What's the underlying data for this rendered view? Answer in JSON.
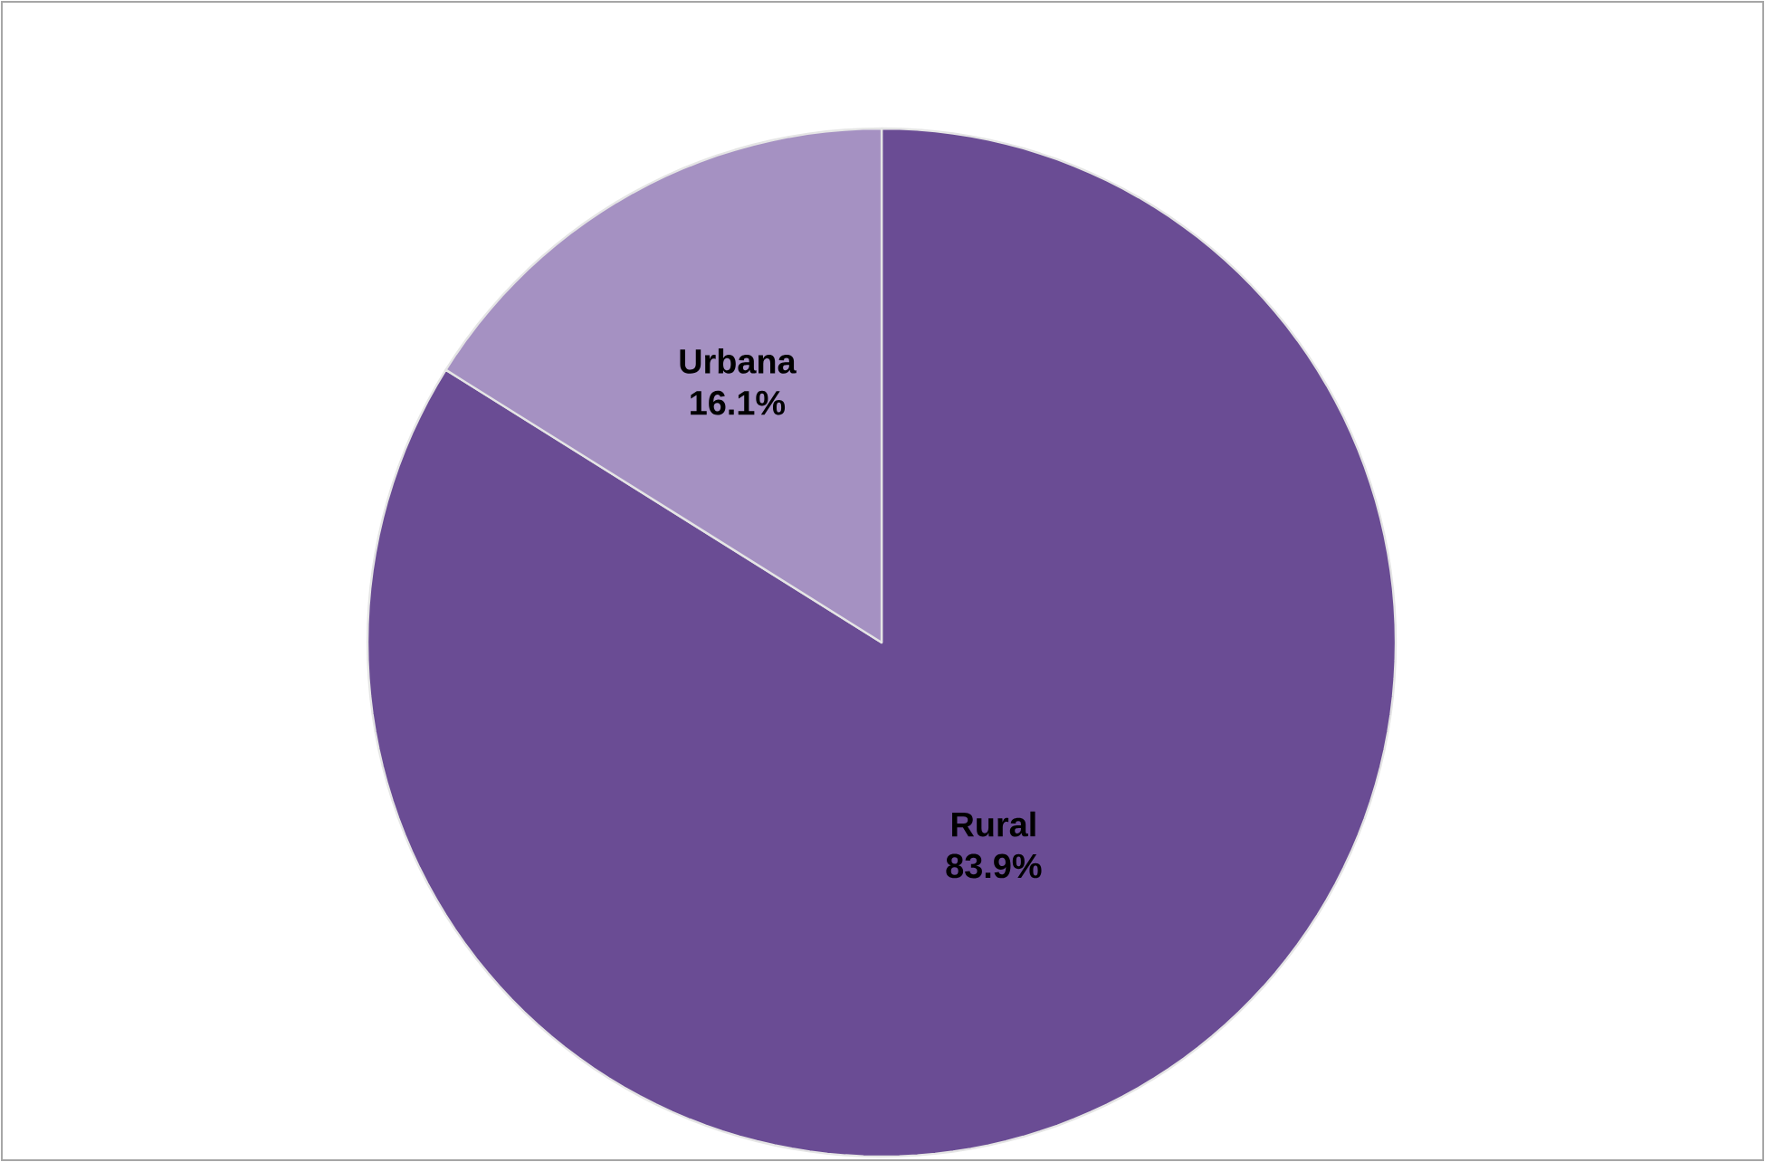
{
  "chart_data": {
    "type": "pie",
    "categories": [
      "Rural",
      "Urbana"
    ],
    "values": [
      83.9,
      16.1
    ],
    "colors": [
      "#6a4c94",
      "#a591c2"
    ],
    "value_labels": [
      "83.9%",
      "16.1%"
    ]
  }
}
